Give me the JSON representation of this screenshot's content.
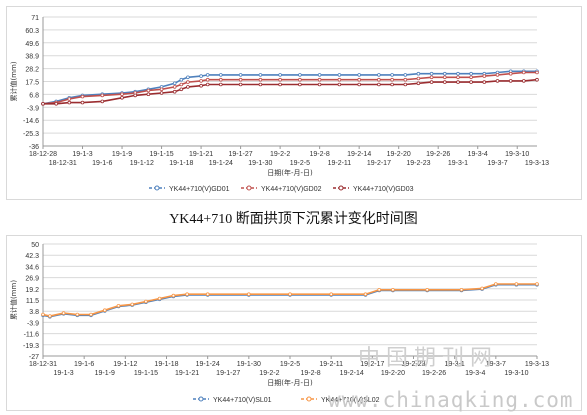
{
  "caption": "YK44+710 断面拱顶下沉累计变化时间图",
  "watermark": {
    "cn": "中国期刊网",
    "url": "www.chinaqking.com"
  },
  "chart_data": [
    {
      "type": "line",
      "ylabel": "累计值(mm)",
      "xlabel": "日期(年-月-日)",
      "ylim": [
        -36,
        71
      ],
      "yticks": [
        "71",
        "60.3",
        "49.6",
        "38.9",
        "28.2",
        "17.5",
        "6.8",
        "-3.9",
        "-14.6",
        "-25.3",
        "-36"
      ],
      "xticks_upper": [
        "18-12-28",
        "19-1-3",
        "19-1-9",
        "19-1-15",
        "19-1-21",
        "19-1-27",
        "19-2-2",
        "19-2-8",
        "19-2-14",
        "19-2-20",
        "19-2-26",
        "19-3-4",
        "19-3-10"
      ],
      "xticks_lower": [
        "18-12-31",
        "19-1-6",
        "19-1-12",
        "19-1-18",
        "19-1-24",
        "19-1-30",
        "19-2-5",
        "19-2-11",
        "19-2-17",
        "19-2-23",
        "19-3-1",
        "19-3-7",
        "19-3-13"
      ],
      "xrange_days": [
        0,
        75
      ],
      "x": [
        0,
        2,
        4,
        6,
        9,
        12,
        14,
        16,
        18,
        20,
        21,
        22,
        24,
        25,
        27,
        30,
        33,
        36,
        39,
        42,
        45,
        48,
        51,
        53,
        55,
        57,
        59,
        61,
        63,
        65,
        67,
        69,
        71,
        73,
        75
      ],
      "series": [
        {
          "name": "YK44+710(V)GD01",
          "color": "#4f81bd",
          "values": [
            -1,
            1,
            4,
            6,
            7,
            8,
            9,
            11,
            13,
            16,
            19,
            21,
            22,
            23,
            23,
            23,
            23,
            23,
            23,
            23,
            23,
            23,
            23,
            23,
            23,
            24,
            24,
            24,
            24,
            24,
            24,
            25,
            26,
            26,
            26
          ]
        },
        {
          "name": "YK44+710(V)GD02",
          "color": "#c0504d",
          "values": [
            -1,
            0,
            3,
            5,
            6,
            7,
            8,
            10,
            11,
            13,
            15,
            17,
            18,
            19,
            19,
            19,
            19,
            19,
            19,
            19,
            19,
            19,
            19,
            19,
            19,
            20,
            21,
            21,
            21,
            21,
            22,
            23,
            24,
            25,
            25
          ]
        },
        {
          "name": "YK44+710(V)GD03",
          "color": "#9b2d30",
          "values": [
            -1,
            -1,
            0,
            0,
            1,
            4,
            6,
            7,
            8,
            9,
            11,
            13,
            14,
            15,
            15,
            15,
            15,
            15,
            15,
            15,
            15,
            15,
            15,
            15,
            15,
            16,
            17,
            17,
            17,
            17,
            17,
            18,
            18,
            18,
            19
          ]
        }
      ],
      "legend": "bottom"
    },
    {
      "type": "line",
      "ylabel": "累计值(mm)",
      "xlabel": "日期(年-月-日)",
      "ylim": [
        -27,
        50
      ],
      "yticks": [
        "50",
        "42.3",
        "34.6",
        "26.9",
        "19.2",
        "11.5",
        "3.8",
        "-3.9",
        "-11.6",
        "-19.3",
        "-27"
      ],
      "xticks_upper": [
        "18-12-31",
        "19-1-6",
        "19-1-12",
        "19-1-18",
        "19-1-24",
        "19-1-30",
        "19-2-5",
        "19-2-11",
        "19-2-17",
        "19-2-23",
        "19-3-1",
        "19-3-7",
        "19-3-13"
      ],
      "xticks_lower": [
        "19-1-3",
        "19-1-9",
        "19-1-15",
        "19-1-21",
        "19-1-27",
        "19-2-2",
        "19-2-8",
        "19-2-14",
        "19-2-20",
        "19-2-26",
        "19-3-4",
        "19-3-10"
      ],
      "xrange_days": [
        0,
        72
      ],
      "x": [
        0,
        1,
        3,
        5,
        7,
        9,
        11,
        13,
        15,
        17,
        19,
        21,
        24,
        30,
        36,
        42,
        47,
        49,
        51,
        56,
        61,
        64,
        66,
        69,
        72
      ],
      "series": [
        {
          "name": "YK44+710(V)SL01",
          "color": "#4f81bd",
          "values": [
            1,
            0,
            2,
            1,
            1,
            4,
            7,
            8,
            10,
            12,
            14,
            15,
            15,
            15,
            15,
            15,
            15,
            18,
            18,
            18,
            18,
            19,
            22,
            22,
            22
          ]
        },
        {
          "name": "YK44+710(V)SL02",
          "color": "#f79646",
          "values": [
            1.5,
            0.5,
            2.5,
            1.5,
            1.5,
            4.5,
            7.5,
            8.5,
            10.5,
            12.5,
            14.5,
            15.5,
            15.5,
            15.5,
            15.5,
            15.5,
            15.5,
            18.5,
            18.5,
            18.5,
            18.5,
            19.5,
            22.5,
            22.5,
            22.5
          ]
        }
      ],
      "legend": "bottom"
    }
  ]
}
